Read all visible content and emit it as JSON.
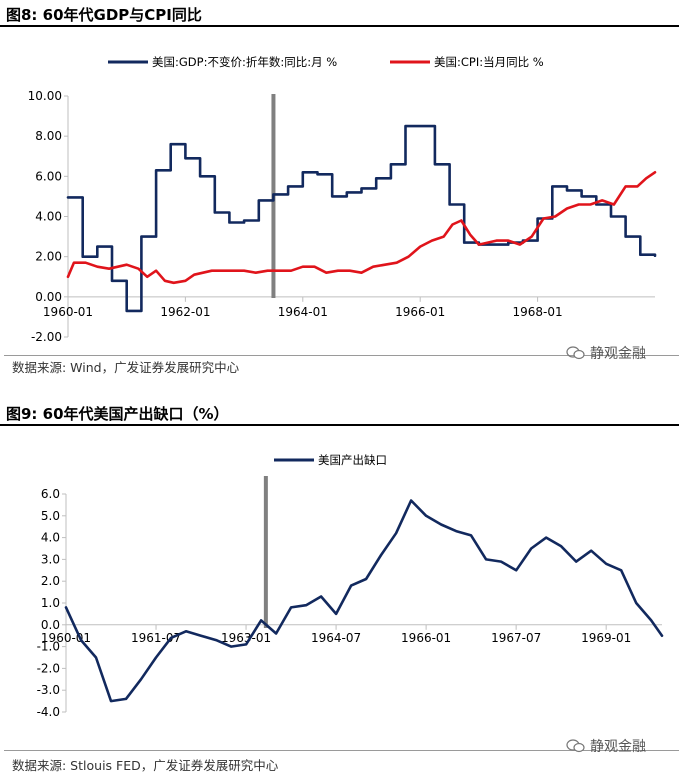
{
  "figure1": {
    "title": "图8:  60年代GDP与CPI同比",
    "source": "数据来源:  Wind，广发证券发展研究中心"
  },
  "figure2": {
    "title": "图9:  60年代美国产出缺口（%）",
    "source": "数据来源:  Stlouis FED，广发证券发展研究中心"
  },
  "watermark": "静观金融",
  "colors": {
    "gdp": "#12295e",
    "cpi": "#e0141b",
    "marker": "#808080",
    "axis": "#bfbfbf"
  },
  "chart_data": [
    {
      "type": "line",
      "title": "60年代GDP与CPI同比",
      "ylim": [
        -2,
        10
      ],
      "yticks": [
        "10.00",
        "8.00",
        "6.00",
        "4.00",
        "2.00",
        "0.00",
        "-2.00"
      ],
      "ytick_values": [
        10,
        8,
        6,
        4,
        2,
        0,
        -2
      ],
      "xlim": [
        1960.0,
        1970.0
      ],
      "xticks": [
        "1960-01",
        "1962-01",
        "1964-01",
        "1966-01",
        "1968-01"
      ],
      "xtick_values": [
        1960.0,
        1962.0,
        1964.0,
        1966.0,
        1968.0
      ],
      "vertical_marker_x": 1963.5,
      "legend": "top",
      "series": [
        {
          "name": "美国:GDP:不变价:折年数:同比:月 %",
          "color": "#12295e",
          "step": true,
          "x": [
            1960.0,
            1960.25,
            1960.5,
            1960.75,
            1961.0,
            1961.25,
            1961.5,
            1961.75,
            1962.0,
            1962.25,
            1962.5,
            1962.75,
            1963.0,
            1963.25,
            1963.5,
            1963.75,
            1964.0,
            1964.25,
            1964.5,
            1964.75,
            1965.0,
            1965.25,
            1965.5,
            1965.75,
            1966.0,
            1966.25,
            1966.5,
            1966.75,
            1967.0,
            1967.25,
            1967.5,
            1967.75,
            1968.0,
            1968.25,
            1968.5,
            1968.75,
            1969.0,
            1969.25,
            1969.5,
            1969.75,
            1970.0
          ],
          "y": [
            4.95,
            2.0,
            2.5,
            0.8,
            -0.7,
            3.0,
            6.3,
            7.6,
            6.9,
            6.0,
            4.2,
            3.7,
            3.8,
            4.8,
            5.1,
            5.5,
            6.2,
            6.1,
            5.0,
            5.2,
            5.4,
            5.9,
            6.6,
            8.5,
            8.5,
            6.6,
            4.6,
            2.7,
            2.6,
            2.6,
            2.7,
            2.8,
            3.9,
            5.5,
            5.3,
            5.0,
            4.6,
            4.0,
            3.0,
            2.1,
            2.05
          ]
        },
        {
          "name": "美国:CPI:当月同比 %",
          "color": "#e0141b",
          "step": false,
          "x": [
            1960.0,
            1960.1,
            1960.3,
            1960.5,
            1960.7,
            1960.85,
            1961.0,
            1961.2,
            1961.35,
            1961.5,
            1961.65,
            1961.8,
            1962.0,
            1962.15,
            1962.3,
            1962.45,
            1962.6,
            1962.8,
            1963.0,
            1963.2,
            1963.4,
            1963.6,
            1963.8,
            1964.0,
            1964.2,
            1964.4,
            1964.6,
            1964.8,
            1965.0,
            1965.2,
            1965.4,
            1965.6,
            1965.8,
            1966.0,
            1966.2,
            1966.4,
            1966.55,
            1966.7,
            1966.85,
            1967.0,
            1967.15,
            1967.3,
            1967.5,
            1967.7,
            1967.9,
            1968.1,
            1968.3,
            1968.5,
            1968.7,
            1968.9,
            1969.1,
            1969.3,
            1969.5,
            1969.7,
            1969.85,
            1970.0
          ],
          "y": [
            1.0,
            1.7,
            1.7,
            1.5,
            1.4,
            1.5,
            1.6,
            1.4,
            1.0,
            1.3,
            0.8,
            0.7,
            0.8,
            1.1,
            1.2,
            1.3,
            1.3,
            1.3,
            1.3,
            1.2,
            1.3,
            1.3,
            1.3,
            1.5,
            1.5,
            1.2,
            1.3,
            1.3,
            1.2,
            1.5,
            1.6,
            1.7,
            2.0,
            2.5,
            2.8,
            3.0,
            3.6,
            3.8,
            3.1,
            2.6,
            2.7,
            2.8,
            2.8,
            2.6,
            3.0,
            3.9,
            4.0,
            4.4,
            4.6,
            4.6,
            4.8,
            4.6,
            5.5,
            5.5,
            5.9,
            6.2
          ]
        }
      ]
    },
    {
      "type": "line",
      "title": "60年代美国产出缺口（%）",
      "ylim": [
        -4,
        6
      ],
      "yticks": [
        "6.0",
        "5.0",
        "4.0",
        "3.0",
        "2.0",
        "1.0",
        "0.0",
        "-1.0",
        "-2.0",
        "-3.0",
        "-4.0"
      ],
      "ytick_values": [
        6,
        5,
        4,
        3,
        2,
        1,
        0,
        -1,
        -2,
        -3,
        -4
      ],
      "xlim": [
        1960.0,
        1969.93
      ],
      "xticks": [
        "1960-01",
        "1961-07",
        "1963-01",
        "1964-07",
        "1966-01",
        "1967-07",
        "1969-01"
      ],
      "xtick_values": [
        1960.0,
        1961.5,
        1963.0,
        1964.5,
        1966.0,
        1967.5,
        1969.0
      ],
      "vertical_marker_x": 1963.33,
      "legend": "top",
      "series": [
        {
          "name": "美国产出缺口",
          "color": "#12295e",
          "step": false,
          "x": [
            1960.0,
            1960.25,
            1960.5,
            1960.75,
            1961.0,
            1961.25,
            1961.5,
            1961.75,
            1962.0,
            1962.25,
            1962.5,
            1962.75,
            1963.0,
            1963.25,
            1963.5,
            1963.75,
            1964.0,
            1964.25,
            1964.5,
            1964.75,
            1965.0,
            1965.25,
            1965.5,
            1965.75,
            1966.0,
            1966.25,
            1966.5,
            1966.75,
            1967.0,
            1967.25,
            1967.5,
            1967.75,
            1968.0,
            1968.25,
            1968.5,
            1968.75,
            1969.0,
            1969.25,
            1969.5,
            1969.75,
            1969.93
          ],
          "y": [
            0.8,
            -0.7,
            -1.5,
            -3.5,
            -3.4,
            -2.5,
            -1.5,
            -0.6,
            -0.3,
            -0.5,
            -0.7,
            -1.0,
            -0.9,
            0.2,
            -0.4,
            0.8,
            0.9,
            1.3,
            0.5,
            1.8,
            2.1,
            3.2,
            4.2,
            5.7,
            5.0,
            4.6,
            4.3,
            4.1,
            3.0,
            2.9,
            2.5,
            3.5,
            4.0,
            3.6,
            2.9,
            3.4,
            2.8,
            2.5,
            1.0,
            0.2,
            -0.5
          ]
        }
      ]
    }
  ]
}
